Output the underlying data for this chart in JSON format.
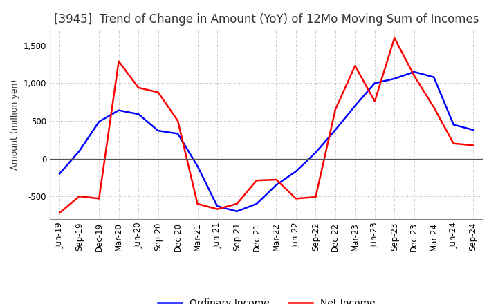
{
  "title": "[3945]  Trend of Change in Amount (YoY) of 12Mo Moving Sum of Incomes",
  "ylabel": "Amount (million yen)",
  "x_labels": [
    "Jun-19",
    "Sep-19",
    "Dec-19",
    "Mar-20",
    "Jun-20",
    "Sep-20",
    "Dec-20",
    "Mar-21",
    "Jun-21",
    "Sep-21",
    "Dec-21",
    "Mar-22",
    "Jun-22",
    "Sep-22",
    "Dec-22",
    "Mar-23",
    "Jun-23",
    "Sep-23",
    "Dec-23",
    "Mar-24",
    "Jun-24",
    "Sep-24"
  ],
  "ordinary_income": [
    -200,
    100,
    490,
    640,
    590,
    370,
    330,
    -100,
    -630,
    -700,
    -600,
    -350,
    -170,
    80,
    380,
    700,
    1000,
    1060,
    1150,
    1080,
    450,
    380
  ],
  "net_income": [
    -720,
    -500,
    -530,
    1290,
    940,
    880,
    500,
    -600,
    -670,
    -600,
    -290,
    -280,
    -530,
    -510,
    650,
    1230,
    760,
    1600,
    1100,
    680,
    200,
    175
  ],
  "ordinary_income_color": "#0000ff",
  "net_income_color": "#ff0000",
  "ylim": [
    -800,
    1700
  ],
  "yticks": [
    -500,
    0,
    500,
    1000,
    1500
  ],
  "line_width": 1.8,
  "background_color": "#ffffff",
  "grid_color": "#aaaaaa",
  "title_fontsize": 12,
  "axis_fontsize": 9,
  "tick_fontsize": 8.5,
  "legend_fontsize": 10
}
